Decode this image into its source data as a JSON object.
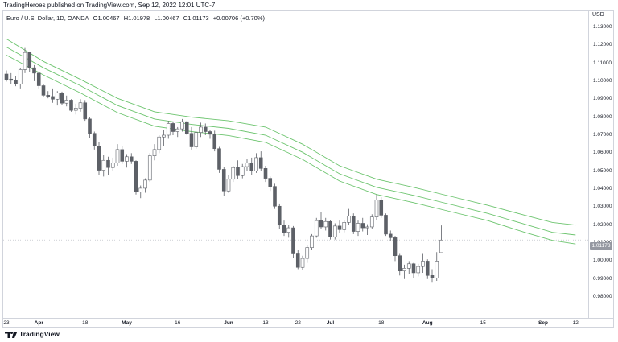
{
  "header": {
    "publisher": "TradingHeroes published on TradingView.com, Sep 12, 2022 12:01 UTC-7"
  },
  "legend": {
    "symbol": "Euro / U.S. Dollar, 1D, OANDA",
    "open": "O1.00467",
    "high": "H1.01978",
    "low": "L1.00467",
    "close": "C1.01173",
    "change": "+0.00706 (+0.70%)"
  },
  "footer": {
    "brand": "TradingView"
  },
  "colors": {
    "up_body": "#ffffff",
    "down_body": "#5d6067",
    "wick": "#5d6067",
    "envelope": "#6cc46e",
    "price_line": "#b2b5be",
    "price_tag": "#9598a1"
  },
  "chart_data": {
    "type": "candlestick",
    "currency": "USD",
    "last_price": "1.01173",
    "ylim": [
      0.972,
      1.138
    ],
    "y_ticks": [
      "1.13000",
      "1.12000",
      "1.11000",
      "1.10000",
      "1.09000",
      "1.08000",
      "1.07000",
      "1.06000",
      "1.05000",
      "1.04000",
      "1.03000",
      "1.02000",
      "1.01000",
      "1.00000",
      "0.99000",
      "0.98000"
    ],
    "x_ticks": [
      {
        "label": "23",
        "bold": false,
        "index": 0
      },
      {
        "label": "Apr",
        "bold": true,
        "index": 7
      },
      {
        "label": "18",
        "bold": false,
        "index": 17
      },
      {
        "label": "May",
        "bold": true,
        "index": 26
      },
      {
        "label": "16",
        "bold": false,
        "index": 37
      },
      {
        "label": "Jun",
        "bold": true,
        "index": 48
      },
      {
        "label": "13",
        "bold": false,
        "index": 56
      },
      {
        "label": "22",
        "bold": false,
        "index": 63
      },
      {
        "label": "Jul",
        "bold": true,
        "index": 70
      },
      {
        "label": "18",
        "bold": false,
        "index": 81
      },
      {
        "label": "Aug",
        "bold": true,
        "index": 91
      },
      {
        "label": "15",
        "bold": false,
        "index": 103
      },
      {
        "label": "Sep",
        "bold": true,
        "index": 116
      },
      {
        "label": "12",
        "bold": false,
        "index": 123
      }
    ],
    "ohlc": [
      [
        1.104,
        1.106,
        1.0998,
        1.101
      ],
      [
        1.1012,
        1.1045,
        1.0985,
        1.1005
      ],
      [
        1.1005,
        1.103,
        1.0972,
        1.0985
      ],
      [
        1.0985,
        1.1075,
        1.096,
        1.1065
      ],
      [
        1.1065,
        1.1185,
        1.1045,
        1.116
      ],
      [
        1.116,
        1.1165,
        1.105,
        1.1075
      ],
      [
        1.1075,
        1.109,
        1.1,
        1.1045
      ],
      [
        1.1045,
        1.1055,
        1.096,
        1.0975
      ],
      [
        1.0975,
        1.0985,
        1.091,
        1.0922
      ],
      [
        1.0922,
        1.0945,
        1.0905,
        1.0915
      ],
      [
        1.0915,
        1.096,
        1.088,
        1.09
      ],
      [
        1.09,
        1.0945,
        1.0865,
        1.0935
      ],
      [
        1.0935,
        1.0942,
        1.087,
        1.0878
      ],
      [
        1.0878,
        1.092,
        1.086,
        1.0895
      ],
      [
        1.0895,
        1.09,
        1.083,
        1.0838
      ],
      [
        1.0838,
        1.0875,
        1.0815,
        1.085
      ],
      [
        1.085,
        1.09,
        1.083,
        1.088
      ],
      [
        1.088,
        1.0895,
        1.078,
        1.079
      ],
      [
        1.079,
        1.08,
        1.0685,
        1.071
      ],
      [
        1.071,
        1.072,
        1.062,
        1.064
      ],
      [
        1.064,
        1.066,
        1.048,
        1.0505
      ],
      [
        1.0505,
        1.059,
        1.047,
        1.056
      ],
      [
        1.056,
        1.058,
        1.048,
        1.052
      ],
      [
        1.052,
        1.0575,
        1.05,
        1.0545
      ],
      [
        1.0545,
        1.065,
        1.053,
        1.062
      ],
      [
        1.062,
        1.064,
        1.054,
        1.0555
      ],
      [
        1.0555,
        1.0595,
        1.052,
        1.058
      ],
      [
        1.058,
        1.06,
        1.054,
        1.0555
      ],
      [
        1.0555,
        1.056,
        1.037,
        1.0385
      ],
      [
        1.0385,
        1.042,
        1.035,
        1.0405
      ],
      [
        1.0405,
        1.046,
        1.038,
        1.045
      ],
      [
        1.045,
        1.06,
        1.044,
        1.0585
      ],
      [
        1.0585,
        1.065,
        1.056,
        1.062
      ],
      [
        1.062,
        1.07,
        1.06,
        1.069
      ],
      [
        1.069,
        1.073,
        1.064,
        1.07
      ],
      [
        1.07,
        1.078,
        1.068,
        1.0765
      ],
      [
        1.0765,
        1.0775,
        1.07,
        1.072
      ],
      [
        1.072,
        1.0745,
        1.069,
        1.0735
      ],
      [
        1.0735,
        1.079,
        1.072,
        1.0775
      ],
      [
        1.0775,
        1.078,
        1.07,
        1.071
      ],
      [
        1.071,
        1.0745,
        1.062,
        1.0635
      ],
      [
        1.0635,
        1.072,
        1.0625,
        1.0715
      ],
      [
        1.0715,
        1.077,
        1.069,
        1.0745
      ],
      [
        1.0745,
        1.0765,
        1.07,
        1.072
      ],
      [
        1.072,
        1.073,
        1.068,
        1.0705
      ],
      [
        1.0705,
        1.0725,
        1.061,
        1.0625
      ],
      [
        1.0625,
        1.0635,
        1.049,
        1.051
      ],
      [
        1.051,
        1.0525,
        1.036,
        1.039
      ],
      [
        1.039,
        1.048,
        1.038,
        1.0455
      ],
      [
        1.0455,
        1.053,
        1.044,
        1.052
      ],
      [
        1.052,
        1.056,
        1.0455,
        1.0475
      ],
      [
        1.0475,
        1.054,
        1.046,
        1.0525
      ],
      [
        1.0525,
        1.057,
        1.05,
        1.0545
      ],
      [
        1.0545,
        1.0575,
        1.048,
        1.05
      ],
      [
        1.05,
        1.06,
        1.049,
        1.0575
      ],
      [
        1.0575,
        1.061,
        1.05,
        1.0515
      ],
      [
        1.0515,
        1.053,
        1.044,
        1.046
      ],
      [
        1.046,
        1.047,
        1.039,
        1.0415
      ],
      [
        1.0415,
        1.043,
        1.029,
        1.0305
      ],
      [
        1.0305,
        1.032,
        1.018,
        1.02
      ],
      [
        1.02,
        1.0225,
        1.014,
        1.016
      ],
      [
        1.016,
        1.02,
        1.013,
        1.0185
      ],
      [
        1.0185,
        1.0195,
        1.002,
        1.004
      ],
      [
        1.004,
        1.006,
        0.9955,
        0.9965
      ],
      [
        0.9965,
        1.003,
        0.995,
        1.0015
      ],
      [
        1.0015,
        1.009,
        0.999,
        1.0075
      ],
      [
        1.0075,
        1.015,
        1.006,
        1.014
      ],
      [
        1.014,
        1.024,
        1.013,
        1.0225
      ],
      [
        1.0225,
        1.0275,
        1.018,
        1.019
      ],
      [
        1.019,
        1.024,
        1.017,
        1.022
      ],
      [
        1.022,
        1.023,
        1.012,
        1.0135
      ],
      [
        1.0135,
        1.021,
        1.012,
        1.0195
      ],
      [
        1.0195,
        1.0225,
        1.0155,
        1.0175
      ],
      [
        1.0175,
        1.023,
        1.016,
        1.0215
      ],
      [
        1.0215,
        1.029,
        1.02,
        1.025
      ],
      [
        1.025,
        1.0265,
        1.015,
        1.0165
      ],
      [
        1.0165,
        1.0225,
        1.014,
        1.021
      ],
      [
        1.021,
        1.024,
        1.0165,
        1.0185
      ],
      [
        1.0185,
        1.0205,
        1.0145,
        1.019
      ],
      [
        1.019,
        1.026,
        1.018,
        1.0245
      ],
      [
        1.0245,
        1.037,
        1.023,
        1.034
      ],
      [
        1.034,
        1.0355,
        1.024,
        1.0255
      ],
      [
        1.0255,
        1.0265,
        1.014,
        1.015
      ],
      [
        1.015,
        1.017,
        1.011,
        1.013
      ],
      [
        1.013,
        1.014,
        1.0,
        1.003
      ],
      [
        1.003,
        1.004,
        0.992,
        0.9945
      ],
      [
        0.9945,
        0.998,
        0.99,
        0.996
      ],
      [
        0.996,
        1.0,
        0.993,
        0.9985
      ],
      [
        0.9985,
        0.999,
        0.9905,
        0.9935
      ],
      [
        0.9935,
        0.9985,
        0.9915,
        0.997
      ],
      [
        0.997,
        1.004,
        0.9935,
        1.0
      ],
      [
        1.0,
        1.001,
        0.99,
        0.992
      ],
      [
        0.992,
        0.9955,
        0.988,
        0.9905
      ],
      [
        0.9905,
        1.005,
        0.989,
        1.0
      ],
      [
        1.0047,
        1.0198,
        1.0047,
        1.0117
      ]
    ],
    "envelope_upper": [
      [
        0,
        1.1235
      ],
      [
        8,
        1.111
      ],
      [
        16,
        1.101
      ],
      [
        24,
        1.0905
      ],
      [
        32,
        1.083
      ],
      [
        40,
        1.08
      ],
      [
        48,
        1.078
      ],
      [
        56,
        1.0745
      ],
      [
        64,
        1.065
      ],
      [
        72,
        1.053
      ],
      [
        80,
        1.0455
      ],
      [
        88,
        1.041
      ],
      [
        96,
        1.036
      ],
      [
        104,
        1.031
      ],
      [
        112,
        1.0255
      ],
      [
        118,
        1.0215
      ],
      [
        123,
        1.02
      ]
    ],
    "envelope_mid": [
      [
        0,
        1.119
      ],
      [
        8,
        1.1075
      ],
      [
        16,
        1.0975
      ],
      [
        24,
        1.0865
      ],
      [
        32,
        1.079
      ],
      [
        40,
        1.076
      ],
      [
        48,
        1.0738
      ],
      [
        56,
        1.07
      ],
      [
        64,
        1.0605
      ],
      [
        72,
        1.0485
      ],
      [
        80,
        1.041
      ],
      [
        88,
        1.0365
      ],
      [
        96,
        1.0315
      ],
      [
        104,
        1.0265
      ],
      [
        112,
        1.0205
      ],
      [
        118,
        1.016
      ],
      [
        123,
        1.0145
      ]
    ],
    "envelope_lower": [
      [
        0,
        1.1145
      ],
      [
        8,
        1.1035
      ],
      [
        16,
        1.0935
      ],
      [
        24,
        1.0825
      ],
      [
        32,
        1.075
      ],
      [
        40,
        1.072
      ],
      [
        48,
        1.0698
      ],
      [
        56,
        1.066
      ],
      [
        64,
        1.0565
      ],
      [
        72,
        1.0445
      ],
      [
        80,
        1.037
      ],
      [
        88,
        1.0325
      ],
      [
        96,
        1.0275
      ],
      [
        104,
        1.0225
      ],
      [
        112,
        1.016
      ],
      [
        118,
        1.0115
      ],
      [
        123,
        1.0095
      ]
    ]
  }
}
